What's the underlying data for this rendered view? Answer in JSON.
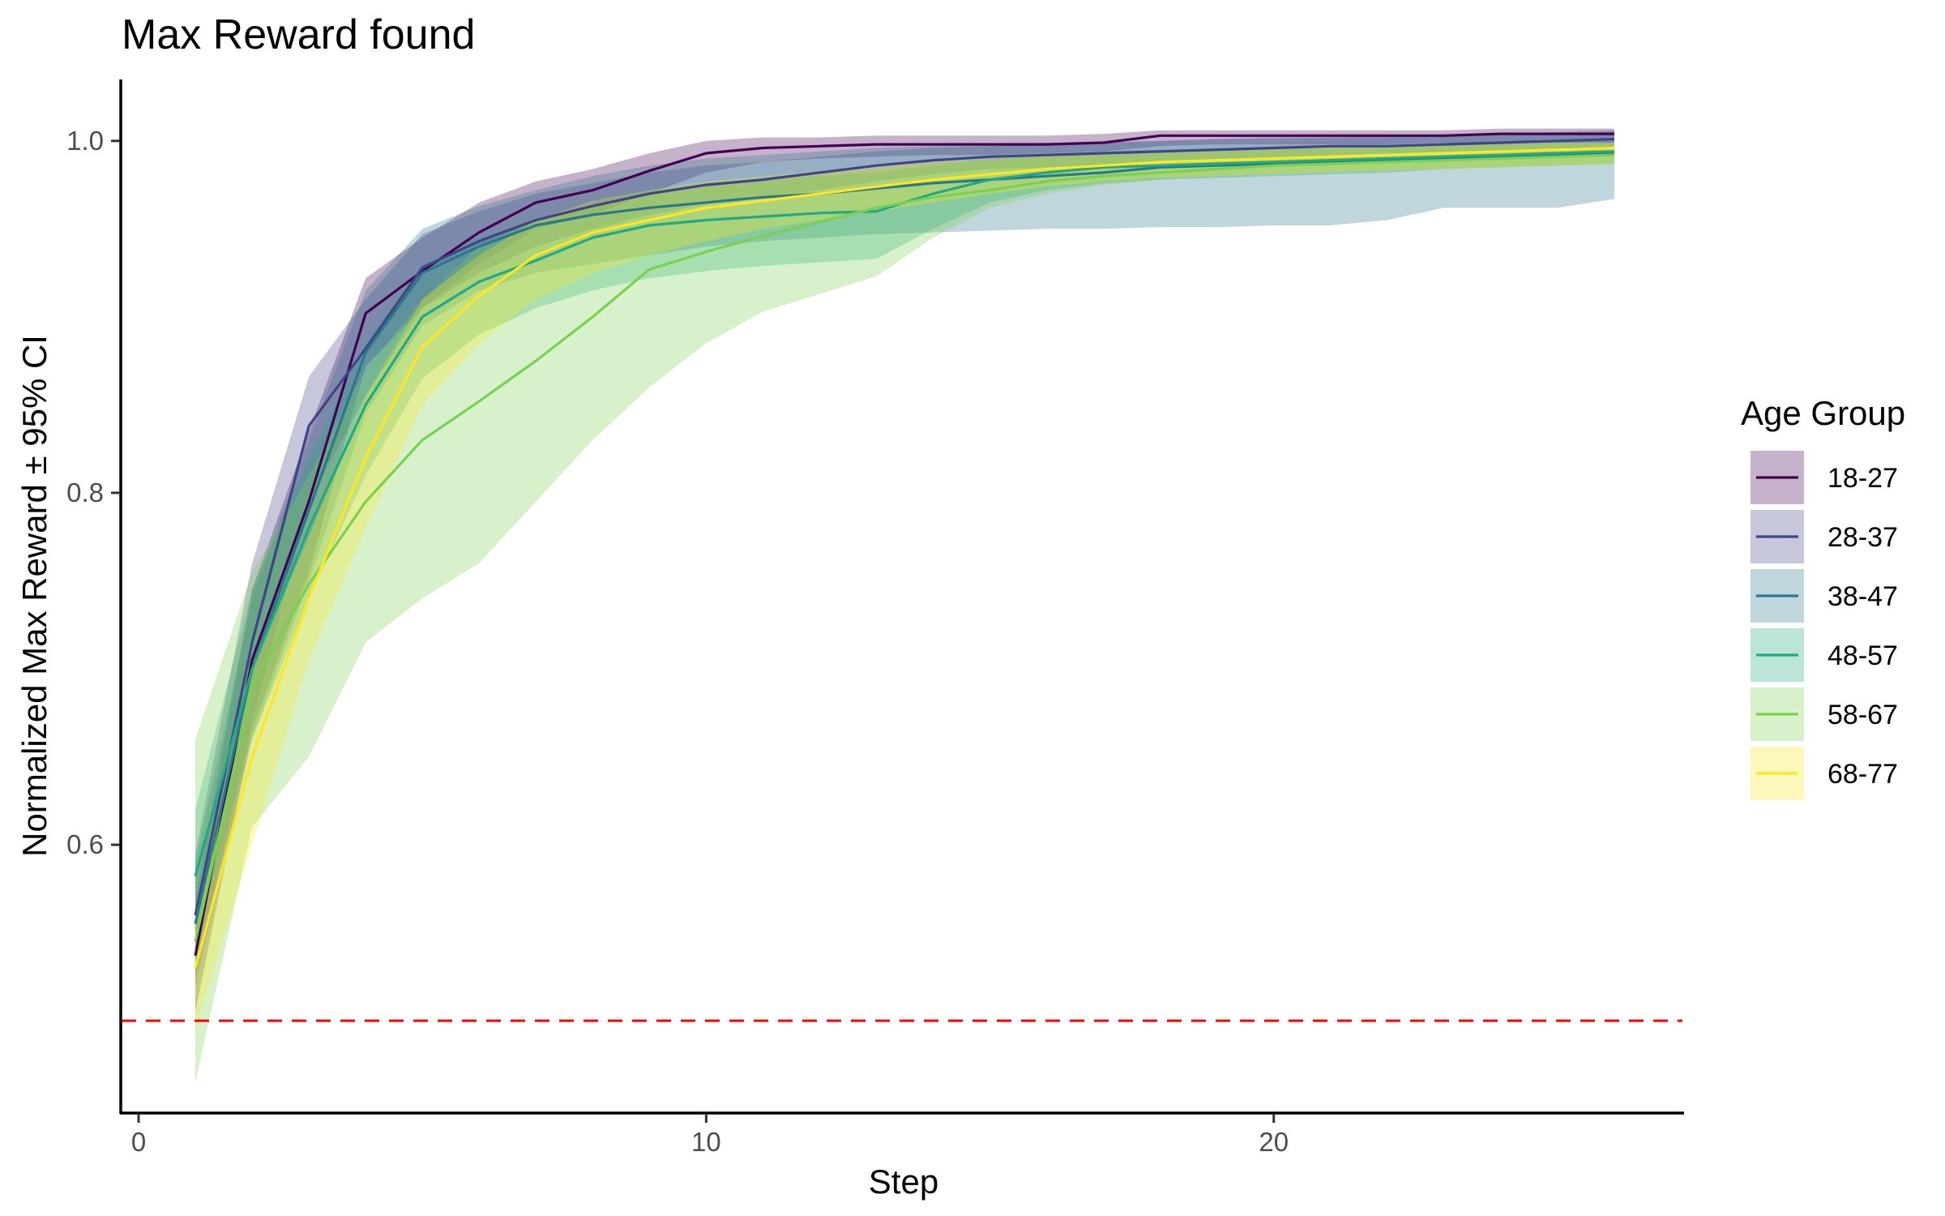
{
  "chart_data": {
    "type": "line",
    "title": "Max Reward found",
    "xlabel": "Step",
    "ylabel": "Normalized Max Reward ± 95% CI",
    "xlim": [
      -0.3,
      27.2
    ],
    "ylim": [
      0.448,
      1.034
    ],
    "x_ticks": [
      0,
      10,
      20
    ],
    "x_tick_labels": [
      "0",
      "10",
      "20"
    ],
    "y_ticks": [
      0.6,
      0.8,
      1.0
    ],
    "y_tick_labels": [
      "0.6",
      "0.8",
      "1.0"
    ],
    "grid": false,
    "legend": {
      "title": "Age Group",
      "position": "right"
    },
    "reference_line": {
      "y": 0.5,
      "color": "#ff0000",
      "style": "dashed"
    },
    "x": [
      1,
      2,
      3,
      4,
      5,
      6,
      7,
      8,
      9,
      10,
      11,
      12,
      13,
      14,
      15,
      16,
      17,
      18,
      19,
      20,
      21,
      22,
      23,
      24,
      25,
      26
    ],
    "series": [
      {
        "name": "18-27",
        "color": "#440154",
        "mean": [
          0.537,
          0.705,
          0.795,
          0.902,
          0.926,
          0.948,
          0.965,
          0.972,
          0.983,
          0.993,
          0.996,
          0.997,
          0.998,
          0.998,
          0.998,
          0.998,
          0.999,
          1.003,
          1.003,
          1.003,
          1.003,
          1.003,
          1.003,
          1.004,
          1.004,
          1.004
        ],
        "lower": [
          0.505,
          0.665,
          0.755,
          0.872,
          0.905,
          0.93,
          0.95,
          0.958,
          0.97,
          0.982,
          0.988,
          0.99,
          0.991,
          0.992,
          0.992,
          0.993,
          0.994,
          0.997,
          0.998,
          0.998,
          0.998,
          0.998,
          0.999,
          0.999,
          0.999,
          0.999
        ],
        "upper": [
          0.57,
          0.745,
          0.835,
          0.922,
          0.945,
          0.965,
          0.977,
          0.984,
          0.993,
          1.0,
          1.002,
          1.002,
          1.003,
          1.003,
          1.003,
          1.003,
          1.004,
          1.006,
          1.006,
          1.006,
          1.006,
          1.006,
          1.006,
          1.007,
          1.007,
          1.007
        ]
      },
      {
        "name": "28-37",
        "color": "#414487",
        "mean": [
          0.56,
          0.715,
          0.838,
          0.882,
          0.928,
          0.943,
          0.955,
          0.963,
          0.97,
          0.975,
          0.978,
          0.982,
          0.986,
          0.989,
          0.991,
          0.992,
          0.993,
          0.994,
          0.995,
          0.996,
          0.997,
          0.997,
          0.998,
          0.999,
          1.0,
          1.001
        ],
        "lower": [
          0.525,
          0.67,
          0.795,
          0.855,
          0.905,
          0.925,
          0.94,
          0.95,
          0.958,
          0.964,
          0.968,
          0.972,
          0.977,
          0.981,
          0.984,
          0.985,
          0.986,
          0.988,
          0.989,
          0.99,
          0.991,
          0.992,
          0.993,
          0.994,
          0.995,
          0.996
        ],
        "upper": [
          0.595,
          0.76,
          0.866,
          0.91,
          0.947,
          0.96,
          0.97,
          0.976,
          0.982,
          0.986,
          0.988,
          0.991,
          0.994,
          0.996,
          0.997,
          0.998,
          0.999,
          1.0,
          1.001,
          1.002,
          1.002,
          1.003,
          1.003,
          1.004,
          1.005,
          1.006
        ]
      },
      {
        "name": "38-47",
        "color": "#2A788E",
        "mean": [
          0.555,
          0.7,
          0.79,
          0.88,
          0.925,
          0.94,
          0.952,
          0.958,
          0.962,
          0.965,
          0.968,
          0.97,
          0.973,
          0.976,
          0.978,
          0.98,
          0.982,
          0.985,
          0.986,
          0.987,
          0.988,
          0.989,
          0.99,
          0.991,
          0.992,
          0.993
        ],
        "lower": [
          0.52,
          0.66,
          0.75,
          0.845,
          0.895,
          0.915,
          0.925,
          0.93,
          0.935,
          0.94,
          0.943,
          0.945,
          0.947,
          0.948,
          0.949,
          0.95,
          0.95,
          0.951,
          0.951,
          0.952,
          0.952,
          0.955,
          0.962,
          0.962,
          0.962,
          0.967
        ],
        "upper": [
          0.59,
          0.74,
          0.83,
          0.915,
          0.95,
          0.963,
          0.972,
          0.98,
          0.986,
          0.99,
          0.992,
          0.994,
          0.996,
          0.997,
          0.998,
          0.999,
          0.999,
          1.0,
          1.001,
          1.001,
          1.002,
          1.002,
          1.003,
          1.003,
          1.004,
          1.005
        ]
      },
      {
        "name": "48-57",
        "color": "#22A884",
        "mean": [
          0.582,
          0.7,
          0.78,
          0.85,
          0.9,
          0.92,
          0.932,
          0.945,
          0.952,
          0.955,
          0.957,
          0.959,
          0.96,
          0.97,
          0.978,
          0.982,
          0.985,
          0.986,
          0.987,
          0.988,
          0.989,
          0.99,
          0.991,
          0.992,
          0.993,
          0.994
        ],
        "lower": [
          0.545,
          0.66,
          0.74,
          0.81,
          0.865,
          0.89,
          0.905,
          0.915,
          0.922,
          0.926,
          0.929,
          0.931,
          0.933,
          0.95,
          0.965,
          0.972,
          0.976,
          0.978,
          0.979,
          0.98,
          0.981,
          0.982,
          0.984,
          0.985,
          0.986,
          0.987
        ],
        "upper": [
          0.62,
          0.745,
          0.82,
          0.885,
          0.93,
          0.945,
          0.955,
          0.965,
          0.972,
          0.976,
          0.978,
          0.98,
          0.982,
          0.986,
          0.99,
          0.992,
          0.994,
          0.995,
          0.996,
          0.996,
          0.997,
          0.997,
          0.998,
          0.998,
          0.999,
          0.999
        ]
      },
      {
        "name": "58-67",
        "color": "#7AD151",
        "mean": [
          0.545,
          0.69,
          0.748,
          0.795,
          0.83,
          0.852,
          0.875,
          0.9,
          0.927,
          0.937,
          0.946,
          0.954,
          0.962,
          0.968,
          0.972,
          0.977,
          0.98,
          0.982,
          0.984,
          0.986,
          0.987,
          0.988,
          0.989,
          0.99,
          0.991,
          0.992
        ],
        "lower": [
          0.465,
          0.61,
          0.65,
          0.715,
          0.74,
          0.76,
          0.795,
          0.83,
          0.86,
          0.885,
          0.903,
          0.913,
          0.923,
          0.945,
          0.962,
          0.97,
          0.975,
          0.978,
          0.98,
          0.981,
          0.982,
          0.983,
          0.984,
          0.985,
          0.986,
          0.987
        ],
        "upper": [
          0.66,
          0.755,
          0.81,
          0.87,
          0.91,
          0.94,
          0.955,
          0.964,
          0.97,
          0.974,
          0.978,
          0.981,
          0.984,
          0.987,
          0.989,
          0.991,
          0.993,
          0.994,
          0.995,
          0.996,
          0.997,
          0.997,
          0.998,
          0.998,
          0.999,
          0.999
        ]
      },
      {
        "name": "68-77",
        "color": "#FDE725",
        "mean": [
          0.53,
          0.65,
          0.74,
          0.82,
          0.883,
          0.912,
          0.935,
          0.948,
          0.955,
          0.962,
          0.966,
          0.97,
          0.974,
          0.978,
          0.981,
          0.984,
          0.986,
          0.988,
          0.989,
          0.99,
          0.991,
          0.992,
          0.993,
          0.994,
          0.995,
          0.996
        ],
        "lower": [
          0.495,
          0.6,
          0.705,
          0.78,
          0.85,
          0.885,
          0.91,
          0.925,
          0.935,
          0.943,
          0.95,
          0.955,
          0.96,
          0.965,
          0.97,
          0.974,
          0.977,
          0.979,
          0.98,
          0.981,
          0.982,
          0.983,
          0.984,
          0.985,
          0.986,
          0.987
        ],
        "upper": [
          0.565,
          0.7,
          0.775,
          0.855,
          0.91,
          0.935,
          0.955,
          0.966,
          0.972,
          0.977,
          0.98,
          0.983,
          0.986,
          0.988,
          0.99,
          0.992,
          0.993,
          0.994,
          0.995,
          0.996,
          0.997,
          0.997,
          0.998,
          0.998,
          0.999,
          0.999
        ]
      }
    ]
  }
}
